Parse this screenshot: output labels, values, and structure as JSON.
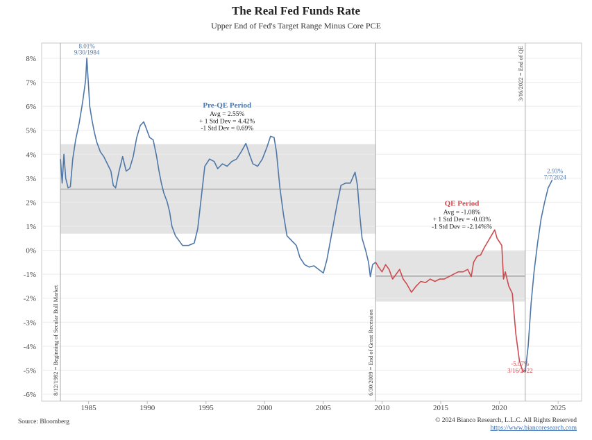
{
  "chart_data": {
    "type": "line",
    "title": "The Real Fed Funds Rate",
    "subtitle": "Upper End of Fed's Target Range Minus Core PCE",
    "xlabel": "",
    "ylabel": "",
    "xlim": [
      1981.0,
      2027.0
    ],
    "ylim": [
      -6.0,
      8.0
    ],
    "x_ticks": [
      "1985",
      "1990",
      "1995",
      "2000",
      "2005",
      "2010",
      "2015",
      "2020",
      "2025"
    ],
    "y_ticks": [
      "8%",
      "7%",
      "6%",
      "5%",
      "4%",
      "3%",
      "2%",
      "1%",
      "0%",
      "-1%",
      "-2%",
      "-3%",
      "-4%",
      "-5%",
      "-6%"
    ],
    "grid": "horizontal",
    "series": [
      {
        "period": "pre-QE",
        "color": "#4e77a8",
        "points": [
          [
            1982.6,
            3.8
          ],
          [
            1982.75,
            2.8
          ],
          [
            1982.9,
            4.0
          ],
          [
            1983.05,
            3.0
          ],
          [
            1983.25,
            2.6
          ],
          [
            1983.45,
            2.65
          ],
          [
            1983.65,
            3.8
          ],
          [
            1983.9,
            4.6
          ],
          [
            1984.2,
            5.3
          ],
          [
            1984.5,
            6.2
          ],
          [
            1984.75,
            7.1
          ],
          [
            1984.85,
            8.01
          ],
          [
            1984.95,
            7.2
          ],
          [
            1985.1,
            6.0
          ],
          [
            1985.3,
            5.4
          ],
          [
            1985.5,
            4.9
          ],
          [
            1985.7,
            4.5
          ],
          [
            1986.0,
            4.1
          ],
          [
            1986.3,
            3.9
          ],
          [
            1986.6,
            3.6
          ],
          [
            1986.9,
            3.3
          ],
          [
            1987.1,
            2.7
          ],
          [
            1987.3,
            2.6
          ],
          [
            1987.6,
            3.3
          ],
          [
            1987.9,
            3.9
          ],
          [
            1988.2,
            3.3
          ],
          [
            1988.5,
            3.4
          ],
          [
            1988.8,
            3.9
          ],
          [
            1989.1,
            4.7
          ],
          [
            1989.4,
            5.2
          ],
          [
            1989.7,
            5.35
          ],
          [
            1989.9,
            5.1
          ],
          [
            1990.2,
            4.7
          ],
          [
            1990.5,
            4.6
          ],
          [
            1990.8,
            3.9
          ],
          [
            1991.0,
            3.3
          ],
          [
            1991.2,
            2.8
          ],
          [
            1991.4,
            2.4
          ],
          [
            1991.7,
            2.0
          ],
          [
            1991.9,
            1.6
          ],
          [
            1992.1,
            1.0
          ],
          [
            1992.4,
            0.6
          ],
          [
            1992.7,
            0.4
          ],
          [
            1993.0,
            0.2
          ],
          [
            1993.5,
            0.2
          ],
          [
            1994.0,
            0.3
          ],
          [
            1994.3,
            0.9
          ],
          [
            1994.6,
            2.2
          ],
          [
            1994.9,
            3.5
          ],
          [
            1995.3,
            3.8
          ],
          [
            1995.7,
            3.7
          ],
          [
            1996.0,
            3.4
          ],
          [
            1996.4,
            3.6
          ],
          [
            1996.8,
            3.5
          ],
          [
            1997.2,
            3.7
          ],
          [
            1997.6,
            3.8
          ],
          [
            1998.0,
            4.1
          ],
          [
            1998.4,
            4.45
          ],
          [
            1998.7,
            4.0
          ],
          [
            1999.0,
            3.6
          ],
          [
            1999.4,
            3.5
          ],
          [
            1999.8,
            3.8
          ],
          [
            2000.2,
            4.3
          ],
          [
            2000.5,
            4.75
          ],
          [
            2000.8,
            4.7
          ],
          [
            2001.0,
            4.1
          ],
          [
            2001.3,
            2.6
          ],
          [
            2001.6,
            1.5
          ],
          [
            2001.9,
            0.6
          ],
          [
            2002.3,
            0.4
          ],
          [
            2002.7,
            0.2
          ],
          [
            2003.0,
            -0.3
          ],
          [
            2003.4,
            -0.6
          ],
          [
            2003.8,
            -0.7
          ],
          [
            2004.2,
            -0.65
          ],
          [
            2004.6,
            -0.8
          ],
          [
            2005.0,
            -0.95
          ],
          [
            2005.3,
            -0.4
          ],
          [
            2005.6,
            0.4
          ],
          [
            2005.9,
            1.2
          ],
          [
            2006.2,
            2.0
          ],
          [
            2006.5,
            2.7
          ],
          [
            2006.9,
            2.8
          ],
          [
            2007.3,
            2.8
          ],
          [
            2007.7,
            3.25
          ],
          [
            2007.9,
            2.7
          ],
          [
            2008.1,
            1.5
          ],
          [
            2008.3,
            0.5
          ],
          [
            2008.6,
            0.0
          ],
          [
            2008.85,
            -0.5
          ],
          [
            2009.0,
            -1.1
          ],
          [
            2009.2,
            -0.6
          ],
          [
            2009.45,
            -0.5
          ]
        ]
      },
      {
        "period": "QE",
        "color": "#cd4a4f",
        "points": [
          [
            2009.45,
            -0.5
          ],
          [
            2009.7,
            -0.7
          ],
          [
            2010.0,
            -0.9
          ],
          [
            2010.3,
            -0.6
          ],
          [
            2010.6,
            -0.8
          ],
          [
            2010.9,
            -1.2
          ],
          [
            2011.2,
            -1.0
          ],
          [
            2011.5,
            -0.8
          ],
          [
            2011.8,
            -1.2
          ],
          [
            2012.1,
            -1.4
          ],
          [
            2012.5,
            -1.75
          ],
          [
            2012.9,
            -1.5
          ],
          [
            2013.3,
            -1.3
          ],
          [
            2013.7,
            -1.35
          ],
          [
            2014.1,
            -1.2
          ],
          [
            2014.5,
            -1.3
          ],
          [
            2014.9,
            -1.2
          ],
          [
            2015.3,
            -1.2
          ],
          [
            2015.7,
            -1.1
          ],
          [
            2016.1,
            -1.0
          ],
          [
            2016.5,
            -0.9
          ],
          [
            2016.9,
            -0.9
          ],
          [
            2017.3,
            -0.8
          ],
          [
            2017.6,
            -1.1
          ],
          [
            2017.8,
            -0.5
          ],
          [
            2018.1,
            -0.25
          ],
          [
            2018.4,
            -0.2
          ],
          [
            2018.7,
            0.1
          ],
          [
            2019.0,
            0.35
          ],
          [
            2019.3,
            0.6
          ],
          [
            2019.6,
            0.85
          ],
          [
            2019.8,
            0.5
          ],
          [
            2020.0,
            0.35
          ],
          [
            2020.2,
            0.2
          ],
          [
            2020.35,
            -1.2
          ],
          [
            2020.5,
            -0.9
          ],
          [
            2020.8,
            -1.5
          ],
          [
            2021.1,
            -1.8
          ],
          [
            2021.4,
            -3.5
          ],
          [
            2021.7,
            -4.6
          ],
          [
            2022.0,
            -5.07
          ],
          [
            2022.2,
            -5.0
          ]
        ]
      },
      {
        "period": "post-QE",
        "color": "#4e77a8",
        "points": [
          [
            2022.2,
            -5.07
          ],
          [
            2022.45,
            -4.0
          ],
          [
            2022.7,
            -2.2
          ],
          [
            2022.95,
            -0.9
          ],
          [
            2023.25,
            0.3
          ],
          [
            2023.55,
            1.3
          ],
          [
            2023.85,
            2.0
          ],
          [
            2024.15,
            2.6
          ],
          [
            2024.5,
            2.93
          ]
        ]
      }
    ],
    "bands": [
      {
        "label": "Pre-QE Period",
        "from": 1982.6,
        "to": 2009.45,
        "avg": 2.55,
        "upper": 4.42,
        "lower": 0.69,
        "color": "#e3e3e3"
      },
      {
        "label": "QE Period",
        "from": 2009.45,
        "to": 2022.2,
        "avg": -1.08,
        "upper": -0.03,
        "lower": -2.14,
        "color": "#e3e3e3"
      }
    ],
    "vlines": [
      {
        "x": 1982.6,
        "label": "8/12/1982 = Beginning of Secular Bull Market"
      },
      {
        "x": 2009.45,
        "label": "6/30/2009 = End of Great Recession"
      },
      {
        "x": 2022.2,
        "label": "3/16/2022 = End of QE"
      }
    ],
    "annotations": {
      "peak": {
        "value": "8.01%",
        "date": "9/30/1984",
        "x": 1984.85,
        "y": 8.01
      },
      "trough": {
        "value": "-5.07%",
        "date": "3/16/2022",
        "x": 2022.0,
        "y": -5.07
      },
      "latest": {
        "value": "2.93%",
        "date": "7/7/2024",
        "x": 2024.5,
        "y": 2.93
      },
      "preqe": {
        "title": "Pre-QE Period",
        "l1": "Avg = 2.55%",
        "l2": "+ 1 Std Dev = 4.42%",
        "l3": "-1 Std Dev = 0.69%"
      },
      "qe": {
        "title": "QE Period",
        "l1": "Avg = -1.08%",
        "l2": "+ 1 Std Dev = -0.03%",
        "l3": "-1 Std Dev = -2.14%%"
      }
    }
  },
  "footer": {
    "source": "Source: Bloomberg",
    "copyright": "© 2024 Bianco Research, L.L.C. All Rights Reserved",
    "url": "https://www.biancoresearch.com"
  }
}
